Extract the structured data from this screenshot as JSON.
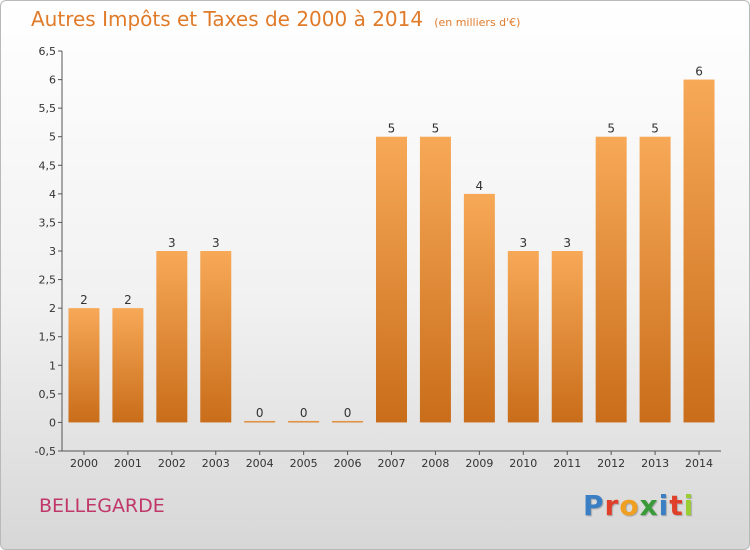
{
  "title": "Autres Impôts et Taxes de 2000 à 2014",
  "unit": "(en milliers d'€)",
  "commune": "BELLEGARDE",
  "logo": {
    "text": "Proxiti",
    "colors": [
      "#3a7fc4",
      "#e0402a",
      "#f0a020",
      "#3a9a3a",
      "#3a7fc4",
      "#e0402a",
      "#9acd32"
    ]
  },
  "colors": {
    "bar_light": "#f7a957",
    "bar_dark": "#c96d1a",
    "title": "#e07b2a",
    "commune": "#c0386a"
  },
  "chart_data": {
    "type": "bar",
    "title": "Autres Impôts et Taxes de 2000 à 2014",
    "xlabel": "",
    "ylabel": "",
    "categories": [
      "2000",
      "2001",
      "2002",
      "2003",
      "2004",
      "2005",
      "2006",
      "2007",
      "2008",
      "2009",
      "2010",
      "2011",
      "2012",
      "2013",
      "2014"
    ],
    "values": [
      2,
      2,
      3,
      3,
      0,
      0,
      0,
      5,
      5,
      4,
      3,
      3,
      5,
      5,
      6
    ],
    "data_labels": [
      "2",
      "2",
      "3",
      "3",
      "0",
      "0",
      "0",
      "5",
      "5",
      "4",
      "3",
      "3",
      "5",
      "5",
      "6"
    ],
    "ylim": [
      -0.5,
      6.5
    ],
    "yticks": [
      "-0,5",
      "0",
      "0,5",
      "1",
      "1,5",
      "2",
      "2,5",
      "3",
      "3,5",
      "4",
      "4,5",
      "5",
      "5,5",
      "6",
      "6,5"
    ],
    "ytick_values": [
      -0.5,
      0,
      0.5,
      1,
      1.5,
      2,
      2.5,
      3,
      3.5,
      4,
      4.5,
      5,
      5.5,
      6,
      6.5
    ],
    "grid": false,
    "legend": "none"
  }
}
